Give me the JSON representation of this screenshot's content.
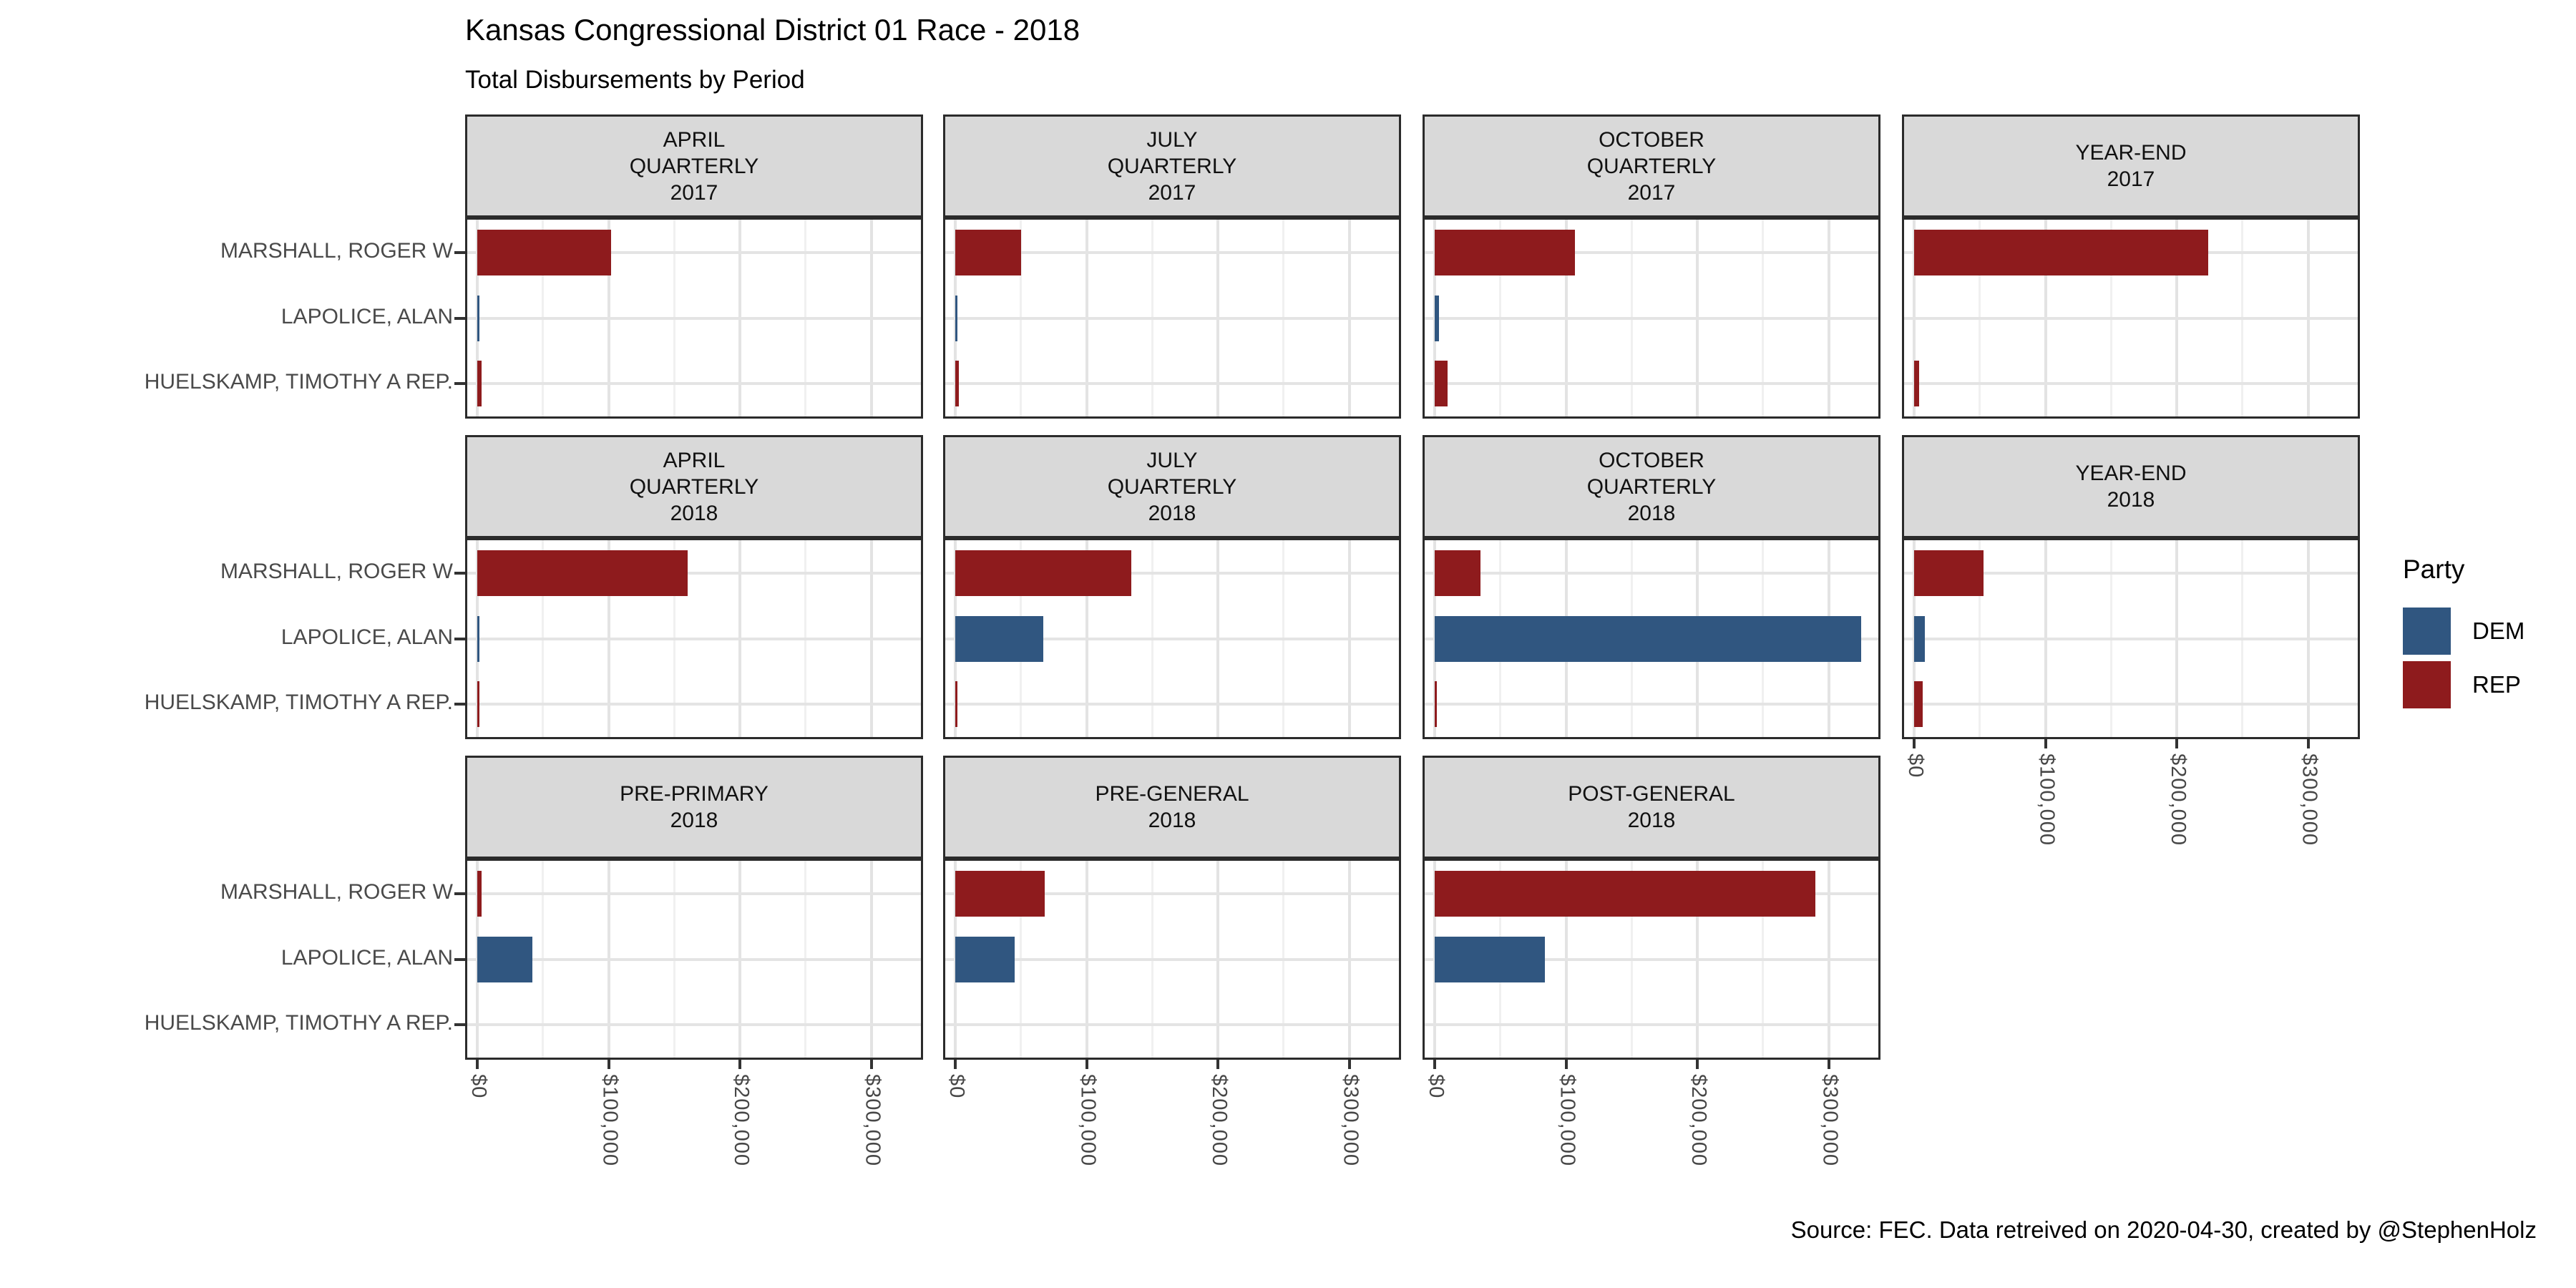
{
  "chart_data": {
    "type": "bar",
    "orientation": "horizontal",
    "title": "Kansas Congressional District 01 Race - 2018",
    "subtitle": "Total Disbursements by Period",
    "caption": "Source: FEC. Data retreived on 2020-04-30, created by @StephenHolz",
    "candidates": [
      "MARSHALL, ROGER W",
      "LAPOLICE, ALAN",
      "HUELSKAMP, TIMOTHY A REP."
    ],
    "candidate_parties": [
      "REP",
      "DEM",
      "REP"
    ],
    "party_colors": {
      "DEM": "#305680",
      "REP": "#8E1B1D"
    },
    "legend": {
      "title": "Party",
      "entries": [
        {
          "label": "DEM",
          "color": "#305680"
        },
        {
          "label": "REP",
          "color": "#8E1B1D"
        }
      ]
    },
    "x_axis": {
      "tick_labels": [
        "$0",
        "$100,000",
        "$200,000",
        "$300,000"
      ],
      "tick_values": [
        0,
        100000,
        200000,
        300000
      ],
      "minor_step": 50000,
      "xlim": [
        0,
        340000
      ]
    },
    "grid": true,
    "facets": [
      {
        "strip": [
          "APRIL",
          "QUARTERLY",
          "2017"
        ],
        "row": 0,
        "col": 0,
        "axis": false,
        "values": [
          102000,
          1500,
          3000
        ]
      },
      {
        "strip": [
          "JULY",
          "QUARTERLY",
          "2017"
        ],
        "row": 0,
        "col": 1,
        "axis": false,
        "values": [
          50000,
          1500,
          2500
        ]
      },
      {
        "strip": [
          "OCTOBER",
          "QUARTERLY",
          "2017"
        ],
        "row": 0,
        "col": 2,
        "axis": false,
        "values": [
          107000,
          3000,
          10000
        ]
      },
      {
        "strip": [
          "YEAR-END",
          "2017"
        ],
        "row": 0,
        "col": 3,
        "axis": false,
        "values": [
          224000,
          0,
          4000
        ]
      },
      {
        "strip": [
          "APRIL",
          "QUARTERLY",
          "2018"
        ],
        "row": 1,
        "col": 0,
        "axis": false,
        "values": [
          160000,
          1000,
          1500
        ]
      },
      {
        "strip": [
          "JULY",
          "QUARTERLY",
          "2018"
        ],
        "row": 1,
        "col": 1,
        "axis": false,
        "values": [
          134000,
          67000,
          1000
        ]
      },
      {
        "strip": [
          "OCTOBER",
          "QUARTERLY",
          "2018"
        ],
        "row": 1,
        "col": 2,
        "axis": false,
        "values": [
          35000,
          325000,
          600
        ]
      },
      {
        "strip": [
          "YEAR-END",
          "2018"
        ],
        "row": 1,
        "col": 3,
        "axis": true,
        "values": [
          53000,
          8000,
          6500
        ]
      },
      {
        "strip": [
          "PRE-PRIMARY",
          "2018"
        ],
        "row": 2,
        "col": 0,
        "axis": true,
        "values": [
          3500,
          42000,
          0
        ]
      },
      {
        "strip": [
          "PRE-GENERAL",
          "2018"
        ],
        "row": 2,
        "col": 1,
        "axis": true,
        "values": [
          68000,
          45000,
          0
        ]
      },
      {
        "strip": [
          "POST-GENERAL",
          "2018"
        ],
        "row": 2,
        "col": 2,
        "axis": true,
        "values": [
          290000,
          84000,
          0
        ]
      }
    ]
  }
}
